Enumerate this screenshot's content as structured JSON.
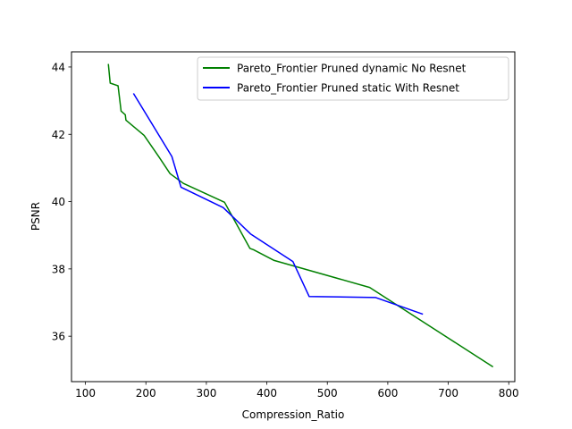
{
  "chart_data": {
    "type": "line",
    "xlabel": "Compression_Ratio",
    "ylabel": "PSNR",
    "xlim": [
      77,
      810
    ],
    "ylim": [
      34.65,
      44.45
    ],
    "xticks": [
      100,
      200,
      300,
      400,
      500,
      600,
      700,
      800
    ],
    "yticks": [
      36,
      38,
      40,
      42,
      44
    ],
    "grid": false,
    "legend_position": "upper right",
    "series": [
      {
        "name": "Pareto_Frontier Pruned dynamic No Resnet",
        "color": "#008000",
        "x": [
          138,
          141,
          154,
          159,
          166,
          167,
          197,
          222,
          240,
          262,
          330,
          372,
          378,
          412,
          570,
          773
        ],
        "y": [
          44.07,
          43.52,
          43.44,
          42.69,
          42.58,
          42.42,
          41.97,
          41.32,
          40.83,
          40.54,
          39.98,
          38.61,
          38.57,
          38.25,
          37.45,
          35.1
        ]
      },
      {
        "name": "Pareto_Frontier Pruned static With Resnet",
        "color": "#0000ff",
        "x": [
          180,
          243,
          258,
          328,
          373,
          443,
          470,
          580,
          657
        ],
        "y": [
          43.2,
          41.34,
          40.43,
          39.82,
          39.04,
          38.22,
          37.18,
          37.15,
          36.66
        ]
      }
    ]
  }
}
